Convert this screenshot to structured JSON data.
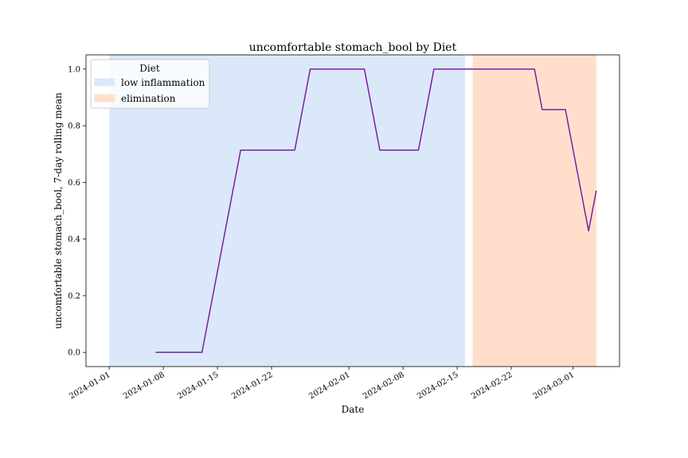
{
  "chart_data": {
    "type": "line",
    "title": "uncomfortable stomach_bool by Diet",
    "xlabel": "Date",
    "ylabel": "uncomfortable stomach_bool, 7-day rolling mean",
    "xlim": [
      "2023-12-29",
      "2024-03-07"
    ],
    "ylim": [
      -0.05,
      1.05
    ],
    "x_ticks": [
      "2024-01-01",
      "2024-01-08",
      "2024-01-15",
      "2024-01-22",
      "2024-02-01",
      "2024-02-08",
      "2024-02-15",
      "2024-02-22",
      "2024-03-01"
    ],
    "y_ticks": [
      "0.0",
      "0.2",
      "0.4",
      "0.6",
      "0.8",
      "1.0"
    ],
    "line_color": "#7b1fa2",
    "grid": false,
    "legend": {
      "title": "Diet",
      "position": "top-left",
      "entries": [
        {
          "label": "low inflammation",
          "color": "#dae8f9"
        },
        {
          "label": "elimination",
          "color": "#ffdfcc"
        }
      ]
    },
    "spans": [
      {
        "label": "low inflammation",
        "start": "2024-01-01",
        "end": "2024-02-16",
        "color": "#dae8f9"
      },
      {
        "label": "elimination",
        "start": "2024-02-17",
        "end": "2024-03-04",
        "color": "#ffdfcc"
      }
    ],
    "series": [
      {
        "x": [
          "2024-01-07",
          "2024-01-13",
          "2024-01-18",
          "2024-01-25",
          "2024-01-27",
          "2024-02-03",
          "2024-02-05",
          "2024-02-10",
          "2024-02-12",
          "2024-02-25",
          "2024-02-26",
          "2024-02-29",
          "2024-03-03",
          "2024-03-04"
        ],
        "values": [
          0.0,
          0.0,
          0.714,
          0.714,
          1.0,
          1.0,
          0.714,
          0.714,
          1.0,
          1.0,
          0.857,
          0.857,
          0.429,
          0.571
        ]
      }
    ]
  }
}
